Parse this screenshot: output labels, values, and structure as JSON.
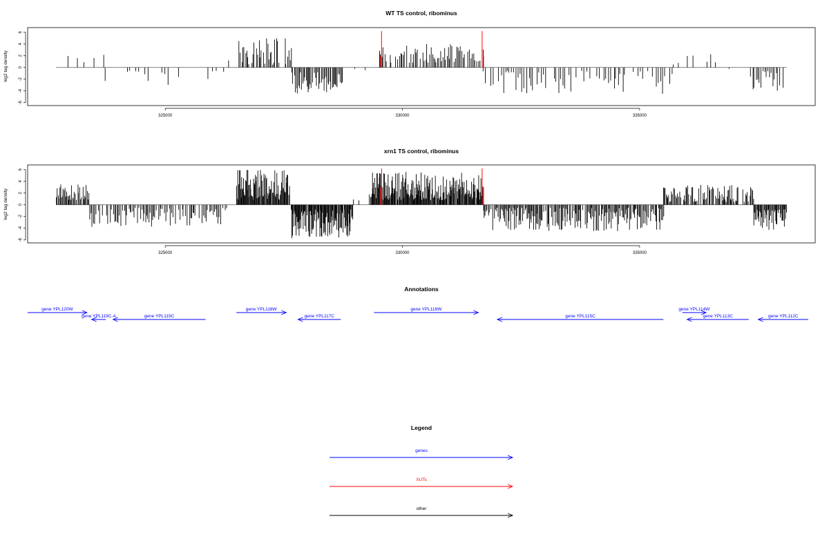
{
  "chart_data": [
    {
      "type": "bar",
      "title": "WT TS control, ribominus",
      "ylabel": "log2 tag density",
      "xlabel": "",
      "xlim": [
        322100,
        338700
      ],
      "ylim": [
        -6.5,
        6.8
      ],
      "xticks": [
        325000,
        330000,
        335000
      ],
      "yticks": [
        -6,
        -4,
        -2,
        0,
        2,
        4,
        6
      ],
      "grid": false,
      "baseline_range": [
        322700,
        338100
      ],
      "regions": [
        {
          "start": 322800,
          "end": 323700,
          "sign": 1,
          "step": 110,
          "min": 0.6,
          "max": 2.7,
          "density": 0.5
        },
        {
          "start": 323700,
          "end": 326300,
          "sign": -1,
          "step": 90,
          "min": 0.5,
          "max": 3.0,
          "density": 0.45
        },
        {
          "start": 326300,
          "end": 326550,
          "sign": 1,
          "step": 60,
          "min": 0.5,
          "max": 1.2,
          "density": 0.4
        },
        {
          "start": 326550,
          "end": 327650,
          "sign": 1,
          "step": 26,
          "min": 0.5,
          "max": 5.0,
          "density": 0.85
        },
        {
          "start": 327650,
          "end": 328750,
          "sign": -1,
          "step": 22,
          "min": 0.8,
          "max": 4.5,
          "density": 0.95
        },
        {
          "start": 328750,
          "end": 329500,
          "sign": -1,
          "step": 200,
          "min": 0.2,
          "max": 0.6,
          "density": 0.2
        },
        {
          "start": 329500,
          "end": 331700,
          "sign": 1,
          "step": 28,
          "min": 0.8,
          "max": 4.0,
          "density": 0.85
        },
        {
          "start": 331700,
          "end": 335700,
          "sign": -1,
          "step": 45,
          "min": 0.6,
          "max": 4.5,
          "density": 0.75
        },
        {
          "start": 335700,
          "end": 336700,
          "sign": 1,
          "step": 70,
          "min": 0.4,
          "max": 2.6,
          "density": 0.5
        },
        {
          "start": 336700,
          "end": 337300,
          "sign": -1,
          "step": 120,
          "min": 0.2,
          "max": 0.8,
          "density": 0.3
        },
        {
          "start": 337300,
          "end": 338100,
          "sign": -1,
          "step": 35,
          "min": 0.6,
          "max": 4.0,
          "density": 0.85
        }
      ],
      "highlights": [
        {
          "x": 329560,
          "y": 6.2,
          "color": "#ff0000"
        },
        {
          "x": 331680,
          "y": 6.2,
          "color": "#ff0000"
        },
        {
          "x": 329540,
          "y": 2.0,
          "color": "#ff0000"
        },
        {
          "x": 331710,
          "y": 2.0,
          "color": "#ff0000"
        }
      ],
      "seed": 17
    },
    {
      "type": "bar",
      "title": "xrn1 TS control, ribominus",
      "ylabel": "log2 tag density",
      "xlabel": "",
      "xlim": [
        322100,
        338700
      ],
      "ylim": [
        -6.5,
        6.8
      ],
      "xticks": [
        325000,
        330000,
        335000
      ],
      "yticks": [
        -6,
        -4,
        -2,
        0,
        2,
        4,
        6
      ],
      "grid": false,
      "baseline_range": [
        322700,
        338100
      ],
      "regions": [
        {
          "start": 322700,
          "end": 323400,
          "sign": 1,
          "step": 18,
          "min": 0.8,
          "max": 3.6,
          "density": 0.9
        },
        {
          "start": 323400,
          "end": 326300,
          "sign": -1,
          "step": 25,
          "min": 0.5,
          "max": 4.0,
          "density": 0.75
        },
        {
          "start": 326300,
          "end": 326500,
          "sign": 1,
          "step": 60,
          "min": 0.5,
          "max": 2.6,
          "density": 0.5
        },
        {
          "start": 326500,
          "end": 327650,
          "sign": 1,
          "step": 12,
          "min": 0.8,
          "max": 6.0,
          "density": 0.95
        },
        {
          "start": 327650,
          "end": 328950,
          "sign": -1,
          "step": 12,
          "min": 0.8,
          "max": 5.8,
          "density": 0.95
        },
        {
          "start": 328950,
          "end": 329300,
          "sign": 1,
          "step": 90,
          "min": 0.3,
          "max": 1.0,
          "density": 0.4
        },
        {
          "start": 329300,
          "end": 331700,
          "sign": 1,
          "step": 12,
          "min": 0.8,
          "max": 5.6,
          "density": 0.95
        },
        {
          "start": 331700,
          "end": 335500,
          "sign": -1,
          "step": 18,
          "min": 0.5,
          "max": 4.5,
          "density": 0.85
        },
        {
          "start": 335500,
          "end": 337400,
          "sign": 1,
          "step": 18,
          "min": 0.5,
          "max": 3.4,
          "density": 0.8
        },
        {
          "start": 337400,
          "end": 338100,
          "sign": -1,
          "step": 14,
          "min": 0.8,
          "max": 4.6,
          "density": 0.95
        }
      ],
      "highlights": [
        {
          "x": 329560,
          "y": 6.2,
          "color": "#ff0000"
        },
        {
          "x": 331680,
          "y": 6.2,
          "color": "#ff0000"
        },
        {
          "x": 329540,
          "y": 3.0,
          "color": "#ff0000"
        },
        {
          "x": 331710,
          "y": 3.0,
          "color": "#ff0000"
        }
      ],
      "seed": 43
    },
    {
      "type": "annotation-track",
      "title": "Annotations",
      "xlim": [
        322100,
        338700
      ],
      "genes": [
        {
          "label": "gene YPL120W",
          "start": 322100,
          "end": 323350,
          "strand": "+",
          "row": 0,
          "color": "#0000ff"
        },
        {
          "label": "gene YPL119C-A",
          "start": 323450,
          "end": 323750,
          "strand": "-",
          "row": 1,
          "color": "#0000ff"
        },
        {
          "label": "gene YPL119C",
          "start": 323900,
          "end": 325850,
          "strand": "-",
          "row": 1,
          "color": "#0000ff"
        },
        {
          "label": "gene YPL118W",
          "start": 326500,
          "end": 327550,
          "strand": "+",
          "row": 0,
          "color": "#0000ff"
        },
        {
          "label": "gene YPL117C",
          "start": 327800,
          "end": 328700,
          "strand": "-",
          "row": 1,
          "color": "#0000ff"
        },
        {
          "label": "gene YPL116W",
          "start": 329400,
          "end": 331600,
          "strand": "+",
          "row": 0,
          "color": "#0000ff"
        },
        {
          "label": "gene YPL115C",
          "start": 332000,
          "end": 335500,
          "strand": "-",
          "row": 1,
          "color": "#0000ff"
        },
        {
          "label": "gene YPL114W",
          "start": 335900,
          "end": 336400,
          "strand": "+",
          "row": 0,
          "color": "#0000ff"
        },
        {
          "label": "gene YPL113C",
          "start": 336000,
          "end": 337300,
          "strand": "-",
          "row": 1,
          "color": "#0000ff"
        },
        {
          "label": "gene YPL112C",
          "start": 337500,
          "end": 338700,
          "strand": "-",
          "row": 1,
          "color": "#0000ff"
        }
      ]
    },
    {
      "type": "legend",
      "title": "Legend",
      "entries": [
        {
          "label": "genes",
          "color": "#0000ff"
        },
        {
          "label": "XUTs",
          "color": "#ff0000"
        },
        {
          "label": "other",
          "color": "#000000"
        }
      ]
    }
  ]
}
